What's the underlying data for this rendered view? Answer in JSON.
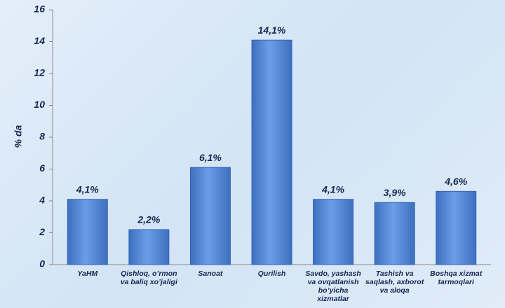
{
  "chart_data": {
    "type": "bar",
    "y_label": "% da",
    "categories": [
      "YaHM",
      "Qishloq, o’rmon va baliq xo’jaligi",
      "Sanoat",
      "Qurilish",
      "Savdo, yashash va ovqatlanish bo’yicha xizmatlar",
      "Tashish va saqlash, axborot va aloqa",
      "Boshqa xizmat tarmoqlari"
    ],
    "values": [
      4.1,
      2.2,
      6.1,
      14.1,
      4.1,
      3.9,
      4.6
    ],
    "value_labels": [
      "4,1%",
      "2,2%",
      "6,1%",
      "14,1%",
      "4,1%",
      "3,9%",
      "4,6%"
    ],
    "color": "#4f86d6",
    "ylim": [
      0,
      16
    ],
    "yticks": [
      0,
      2,
      4,
      6,
      8,
      10,
      12,
      14,
      16
    ]
  }
}
